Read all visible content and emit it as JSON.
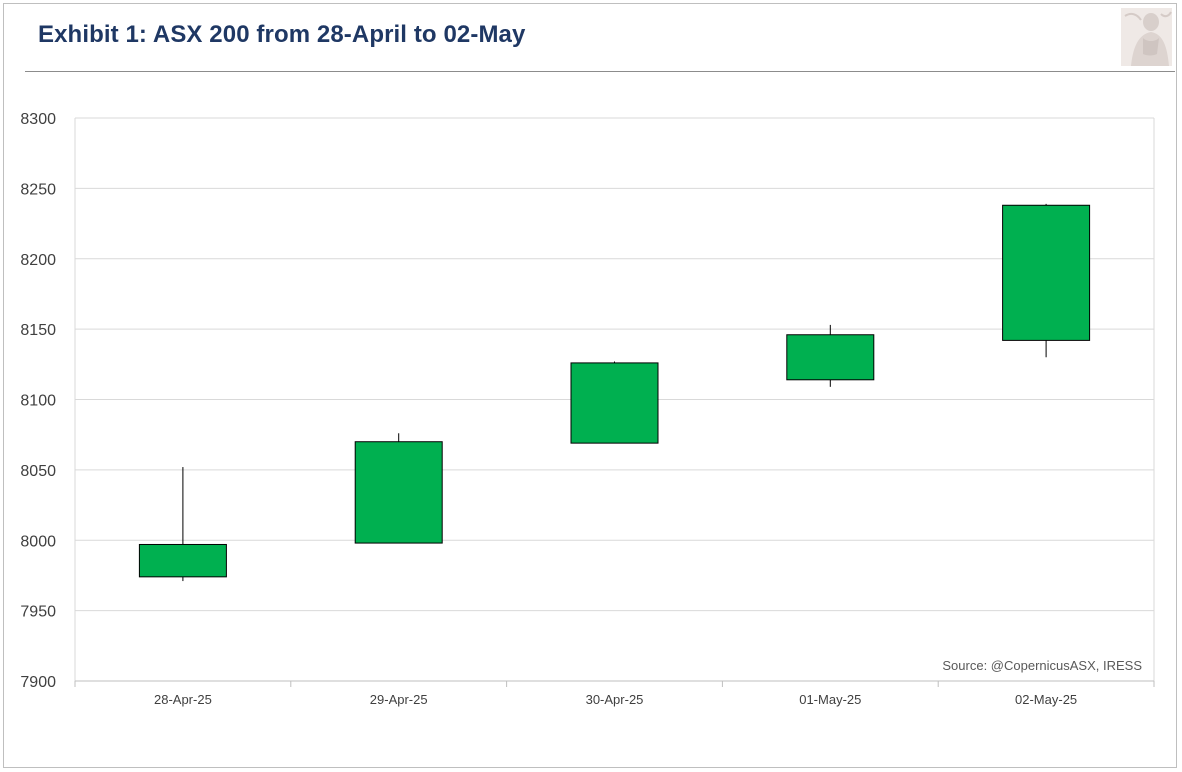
{
  "header": {
    "title": "Exhibit 1: ASX 200 from 28-April to 02-May",
    "logo_icon": "statue-logo-icon"
  },
  "chart_data": {
    "type": "candlestick",
    "title": "Exhibit 1: ASX 200 from 28-April to 02-May",
    "xlabel": "",
    "ylabel": "",
    "ylim": [
      7900,
      8300
    ],
    "yticks": [
      7900,
      7950,
      8000,
      8050,
      8100,
      8150,
      8200,
      8250,
      8300
    ],
    "grid": true,
    "categories": [
      "28-Apr-25",
      "29-Apr-25",
      "30-Apr-25",
      "01-May-25",
      "02-May-25"
    ],
    "series": [
      {
        "open": [
          7974,
          7998,
          8069,
          8114,
          8142
        ],
        "high": [
          8052,
          8076,
          8127,
          8153,
          8239
        ],
        "low": [
          7971,
          7998,
          8069,
          8109,
          8130
        ],
        "close": [
          7997,
          8070,
          8126,
          8146,
          8238
        ]
      }
    ],
    "colors": {
      "up": "#00b050",
      "wick": "#000000",
      "grid": "#d9d9d9",
      "axis": "#bfbfbf"
    },
    "annotation": "Source: @CopernicusASX, IRESS"
  }
}
